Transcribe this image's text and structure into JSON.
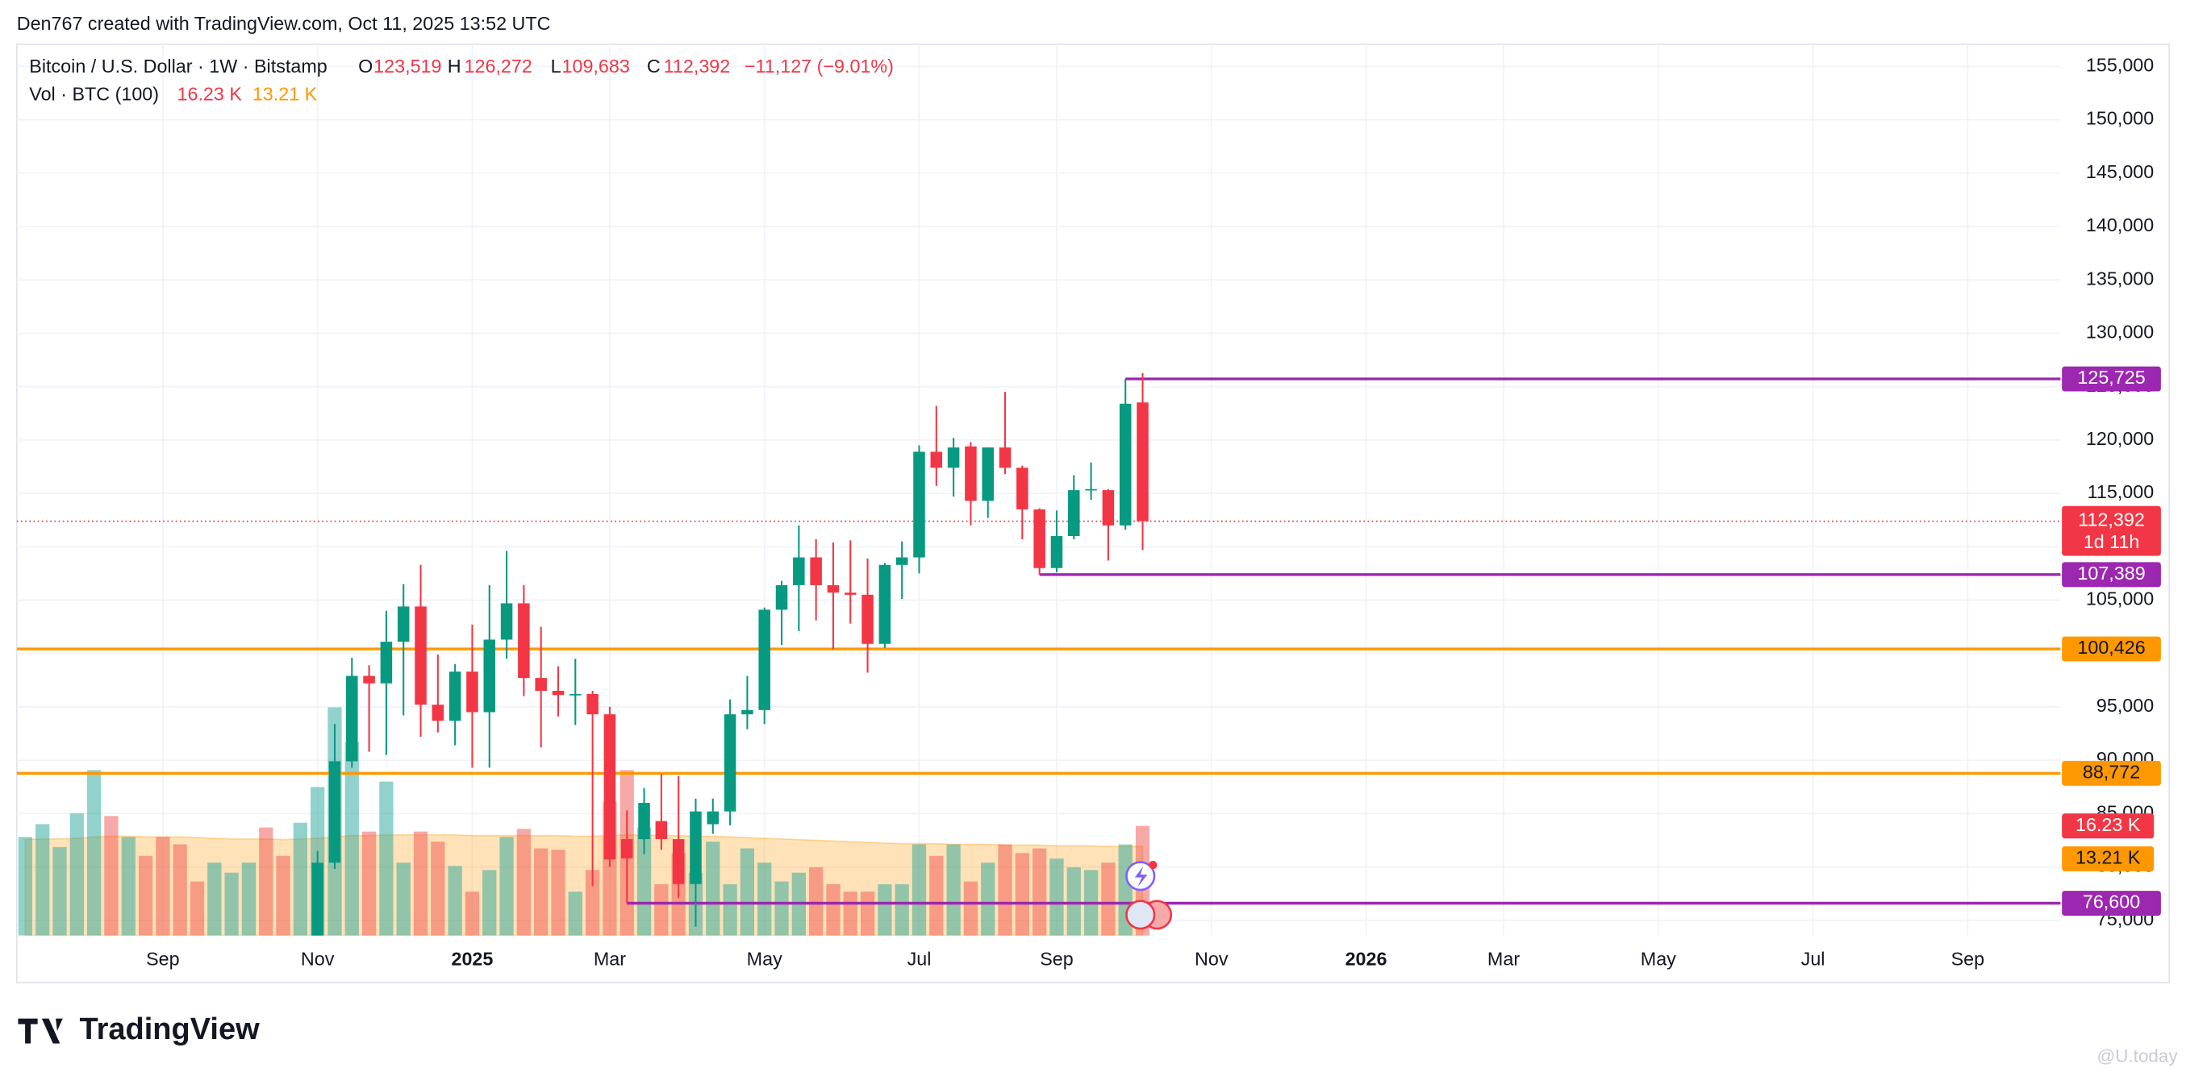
{
  "header": "Den767 created with TradingView.com, Oct 11, 2025 13:52 UTC",
  "logo": "TradingView",
  "watermark": "@U.today",
  "legend": {
    "instrument": "Bitcoin / U.S. Dollar · 1W · Bitstamp",
    "open_key": "O",
    "open": "123,519",
    "high_key": "H",
    "high": "126,272",
    "low_key": "L",
    "low": "109,683",
    "close_key": "C",
    "close": "112,392",
    "change": "−11,127 (−9.01%)"
  },
  "chart_data": {
    "type": "candlestick",
    "grid": true,
    "xlim": [
      -0.5,
      118.4
    ],
    "xticks": [
      {
        "value": 8,
        "label": "Sep"
      },
      {
        "value": 17,
        "label": "Nov"
      },
      {
        "value": 26,
        "label": "2025"
      },
      {
        "value": 34,
        "label": "Mar"
      },
      {
        "value": 43,
        "label": "May"
      },
      {
        "value": 52,
        "label": "Jul"
      },
      {
        "value": 60,
        "label": "Sep"
      },
      {
        "value": 69,
        "label": "Nov"
      },
      {
        "value": 78,
        "label": "2026"
      },
      {
        "value": 86,
        "label": "Mar"
      },
      {
        "value": 95,
        "label": "May"
      },
      {
        "value": 104,
        "label": "Jul"
      },
      {
        "value": 113,
        "label": "Sep"
      }
    ],
    "ylim": [
      73574,
      157075
    ],
    "yticks": [
      {
        "value": 75000,
        "label": "75,000"
      },
      {
        "value": 80000,
        "label": "80,000"
      },
      {
        "value": 85000,
        "label": "85,000"
      },
      {
        "value": 90000,
        "label": "90,000"
      },
      {
        "value": 95000,
        "label": "95,000"
      },
      {
        "value": 100000,
        "label": "100,000"
      },
      {
        "value": 105000,
        "label": "105,000"
      },
      {
        "value": 110000,
        "label": "110,000"
      },
      {
        "value": 115000,
        "label": "115,000"
      },
      {
        "value": 120000,
        "label": "120,000"
      },
      {
        "value": 125000,
        "label": "125,000"
      },
      {
        "value": 130000,
        "label": "130,000"
      },
      {
        "value": 135000,
        "label": "135,000"
      },
      {
        "value": 140000,
        "label": "140,000"
      },
      {
        "value": 145000,
        "label": "145,000"
      },
      {
        "value": 150000,
        "label": "150,000"
      },
      {
        "value": 155000,
        "label": "155,000"
      }
    ],
    "y2lim": [
      0,
      132
    ],
    "candles": {
      "up_color": "#089981",
      "down_color": "#f23645",
      "x": [
        17,
        18,
        19,
        20,
        21,
        22,
        23,
        24,
        25,
        26,
        27,
        28,
        29,
        30,
        31,
        32,
        33,
        34,
        35,
        36,
        37,
        38,
        39,
        40,
        41,
        42,
        43,
        44,
        45,
        46,
        47,
        48,
        49,
        50,
        51,
        52,
        53,
        54,
        55,
        56,
        57,
        58,
        59,
        60,
        61,
        62,
        63,
        64,
        65
      ],
      "open": [
        68800,
        80400,
        89900,
        97900,
        97200,
        101100,
        104400,
        95200,
        93700,
        98300,
        94500,
        101300,
        104700,
        97700,
        96500,
        96100,
        96200,
        94300,
        82600,
        82600,
        84300,
        82600,
        78400,
        84000,
        85200,
        94300,
        94700,
        104100,
        106400,
        109000,
        106400,
        105700,
        105500,
        100900,
        108300,
        109000,
        118900,
        117400,
        119400,
        114300,
        119300,
        117400,
        113500,
        108000,
        111000,
        115300,
        115300,
        112000,
        123519
      ],
      "high": [
        81500,
        93400,
        99600,
        98900,
        104000,
        106500,
        108300,
        99900,
        99000,
        102700,
        106400,
        109600,
        106400,
        102500,
        98800,
        99500,
        96500,
        95000,
        85300,
        87400,
        88700,
        88500,
        86400,
        86400,
        95700,
        97900,
        104300,
        106800,
        112000,
        110700,
        110400,
        110600,
        108900,
        108500,
        110500,
        119500,
        123200,
        120200,
        119800,
        119300,
        124500,
        117600,
        113600,
        113400,
        116700,
        117900,
        115400,
        125725,
        126272
      ],
      "low": [
        66800,
        79800,
        89300,
        90800,
        90500,
        94200,
        92200,
        92600,
        91400,
        89300,
        89300,
        99500,
        96000,
        91200,
        94100,
        93300,
        78200,
        80000,
        76600,
        81200,
        81600,
        77100,
        74400,
        83100,
        83900,
        92900,
        93400,
        100800,
        102100,
        103100,
        100400,
        102800,
        98200,
        100500,
        105100,
        107500,
        115700,
        114700,
        112000,
        112700,
        116800,
        110700,
        107389,
        107600,
        110700,
        114400,
        108700,
        111600,
        109683
      ],
      "close": [
        80400,
        89900,
        97900,
        97200,
        101100,
        104400,
        95200,
        93700,
        98300,
        94500,
        101300,
        104700,
        97700,
        96500,
        96100,
        96200,
        94300,
        80700,
        80800,
        86000,
        82600,
        78400,
        85200,
        85200,
        94300,
        94700,
        104100,
        106400,
        109000,
        106400,
        105700,
        105500,
        100900,
        108300,
        109000,
        118900,
        117400,
        119300,
        114300,
        119300,
        117400,
        113500,
        108000,
        111000,
        115300,
        115400,
        112000,
        123400,
        112392
      ]
    },
    "volume": {
      "name": "Vol · BTC (100)",
      "label": "16.23 K",
      "ma_label": "13.21 K",
      "label_color": "#f23645",
      "ma_color": "#ff9800",
      "x": [
        0,
        1,
        2,
        3,
        4,
        5,
        6,
        7,
        8,
        9,
        10,
        11,
        12,
        13,
        14,
        15,
        16,
        17,
        18,
        19,
        20,
        21,
        22,
        23,
        24,
        25,
        26,
        27,
        28,
        29,
        30,
        31,
        32,
        33,
        34,
        35,
        36,
        37,
        38,
        39,
        40,
        41,
        42,
        43,
        44,
        45,
        46,
        47,
        48,
        49,
        50,
        51,
        52,
        53,
        54,
        55,
        56,
        57,
        58,
        59,
        60,
        61,
        62,
        63,
        64,
        65
      ],
      "values": [
        14.6,
        16.5,
        13.1,
        18.1,
        24.5,
        17.7,
        14.6,
        11.8,
        14.6,
        13.5,
        8.0,
        10.8,
        9.3,
        10.8,
        16.0,
        11.8,
        16.7,
        22.0,
        33.8,
        28.7,
        15.4,
        22.8,
        10.8,
        15.4,
        13.9,
        10.3,
        6.5,
        9.7,
        14.6,
        15.8,
        12.9,
        12.7,
        6.5,
        9.7,
        19.8,
        24.5,
        16.0,
        7.6,
        12.2,
        9.3,
        13.9,
        7.6,
        12.9,
        10.8,
        8.0,
        9.3,
        10.1,
        7.6,
        6.5,
        6.5,
        7.6,
        7.6,
        13.5,
        11.8,
        13.5,
        8.0,
        10.8,
        13.5,
        12.2,
        12.9,
        11.4,
        10.1,
        9.7,
        10.8,
        13.5,
        16.23
      ],
      "colors": [
        "#26a69a",
        "#26a69a",
        "#26a69a",
        "#26a69a",
        "#26a69a",
        "#ef5350",
        "#26a69a",
        "#ef5350",
        "#ef5350",
        "#ef5350",
        "#ef5350",
        "#26a69a",
        "#26a69a",
        "#26a69a",
        "#ef5350",
        "#ef5350",
        "#26a69a",
        "#26a69a",
        "#26a69a",
        "#26a69a",
        "#ef5350",
        "#26a69a",
        "#26a69a",
        "#ef5350",
        "#ef5350",
        "#26a69a",
        "#ef5350",
        "#26a69a",
        "#26a69a",
        "#ef5350",
        "#ef5350",
        "#ef5350",
        "#26a69a",
        "#ef5350",
        "#ef5350",
        "#ef5350",
        "#26a69a",
        "#ef5350",
        "#ef5350",
        "#26a69a",
        "#26a69a",
        "#26a69a",
        "#26a69a",
        "#26a69a",
        "#26a69a",
        "#26a69a",
        "#ef5350",
        "#ef5350",
        "#ef5350",
        "#ef5350",
        "#26a69a",
        "#26a69a",
        "#26a69a",
        "#ef5350",
        "#26a69a",
        "#ef5350",
        "#26a69a",
        "#ef5350",
        "#ef5350",
        "#ef5350",
        "#26a69a",
        "#26a69a",
        "#26a69a",
        "#ef5350",
        "#26a69a",
        "#ef5350"
      ],
      "ma_values": [
        14.2,
        14.3,
        14.3,
        14.4,
        14.6,
        14.7,
        14.7,
        14.6,
        14.6,
        14.6,
        14.5,
        14.4,
        14.3,
        14.3,
        14.3,
        14.2,
        14.3,
        14.4,
        14.6,
        14.8,
        14.8,
        14.9,
        14.9,
        14.9,
        14.9,
        14.9,
        14.8,
        14.8,
        14.8,
        14.8,
        14.8,
        14.8,
        14.7,
        14.7,
        14.8,
        14.9,
        14.9,
        14.8,
        14.8,
        14.7,
        14.7,
        14.6,
        14.5,
        14.4,
        14.3,
        14.2,
        14.1,
        14.0,
        13.9,
        13.8,
        13.7,
        13.6,
        13.6,
        13.6,
        13.5,
        13.5,
        13.5,
        13.4,
        13.4,
        13.4,
        13.3,
        13.3,
        13.3,
        13.2,
        13.2,
        13.21
      ]
    },
    "levels": [
      {
        "value": 125725,
        "label": "125,725",
        "color": "#9c27b0",
        "text_color": "#ffffff",
        "x_start": 64
      },
      {
        "value": 107389,
        "label": "107,389",
        "color": "#9c27b0",
        "text_color": "#ffffff",
        "x_start": 59
      },
      {
        "value": 100426,
        "label": "100,426",
        "color": "#ff9800",
        "text_color": "#131722"
      },
      {
        "value": 88772,
        "label": "88,772",
        "color": "#ff9800",
        "text_color": "#131722"
      },
      {
        "value": 76600,
        "label": "76,600",
        "color": "#9c27b0",
        "text_color": "#ffffff",
        "x_start": 35
      }
    ],
    "last_price": {
      "value": 112392,
      "label": "112,392",
      "countdown": "1d 11h",
      "color": "#f23645"
    }
  }
}
